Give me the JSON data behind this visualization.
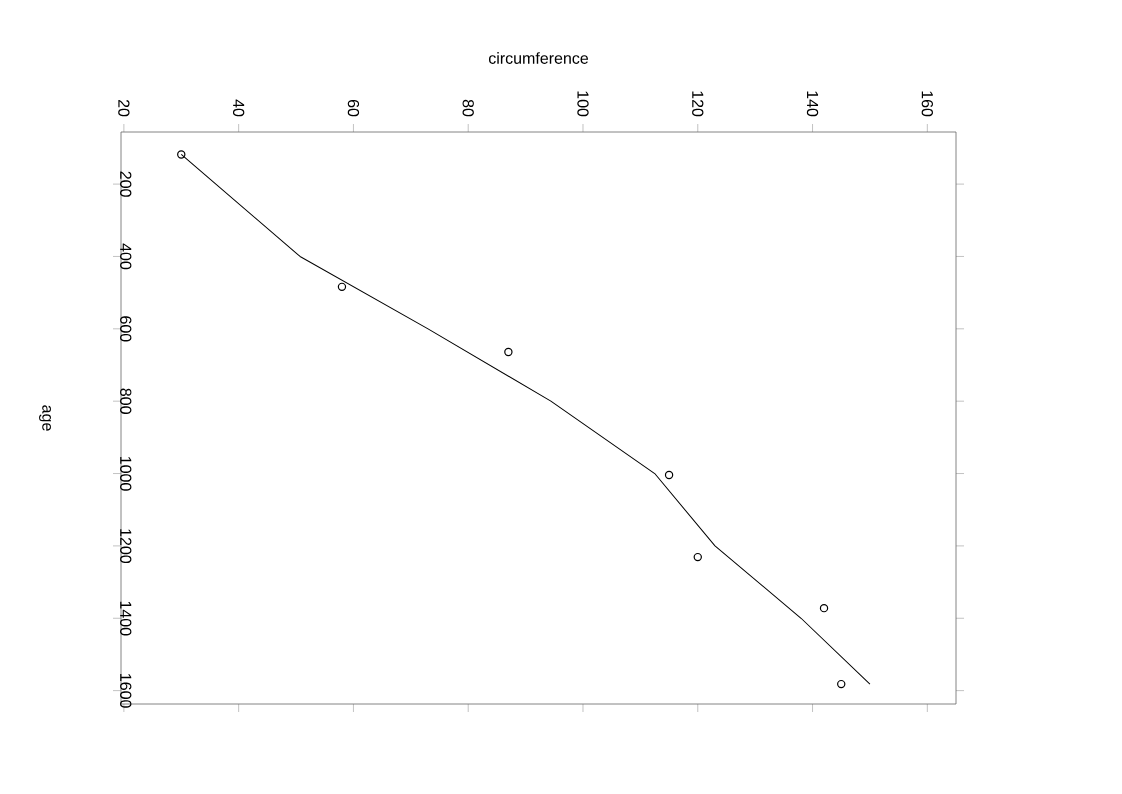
{
  "chart_data": {
    "type": "scatter",
    "xlabel": "circumference",
    "ylabel": "age",
    "xlim": [
      19.5,
      165
    ],
    "ylim": [
      1637,
      56
    ],
    "xticks": [
      20,
      40,
      60,
      80,
      100,
      120,
      140,
      160
    ],
    "yticks": [
      200,
      400,
      600,
      800,
      1000,
      1200,
      1400,
      1600
    ],
    "grid": false,
    "series": [
      {
        "color": "#000000",
        "marker": "circle",
        "x": [
          30,
          58,
          87,
          115,
          120,
          142,
          145
        ],
        "values": [
          118,
          484,
          664,
          1004,
          1231,
          1372,
          1582
        ]
      },
      {
        "type": "line",
        "color": "#000000",
        "line_style": "solid",
        "marker": "none",
        "x": [
          30,
          50.7,
          73,
          94.4,
          112.5,
          123,
          138,
          150
        ],
        "values": [
          118,
          400,
          600,
          800,
          1000,
          1200,
          1400,
          1582
        ]
      }
    ]
  }
}
